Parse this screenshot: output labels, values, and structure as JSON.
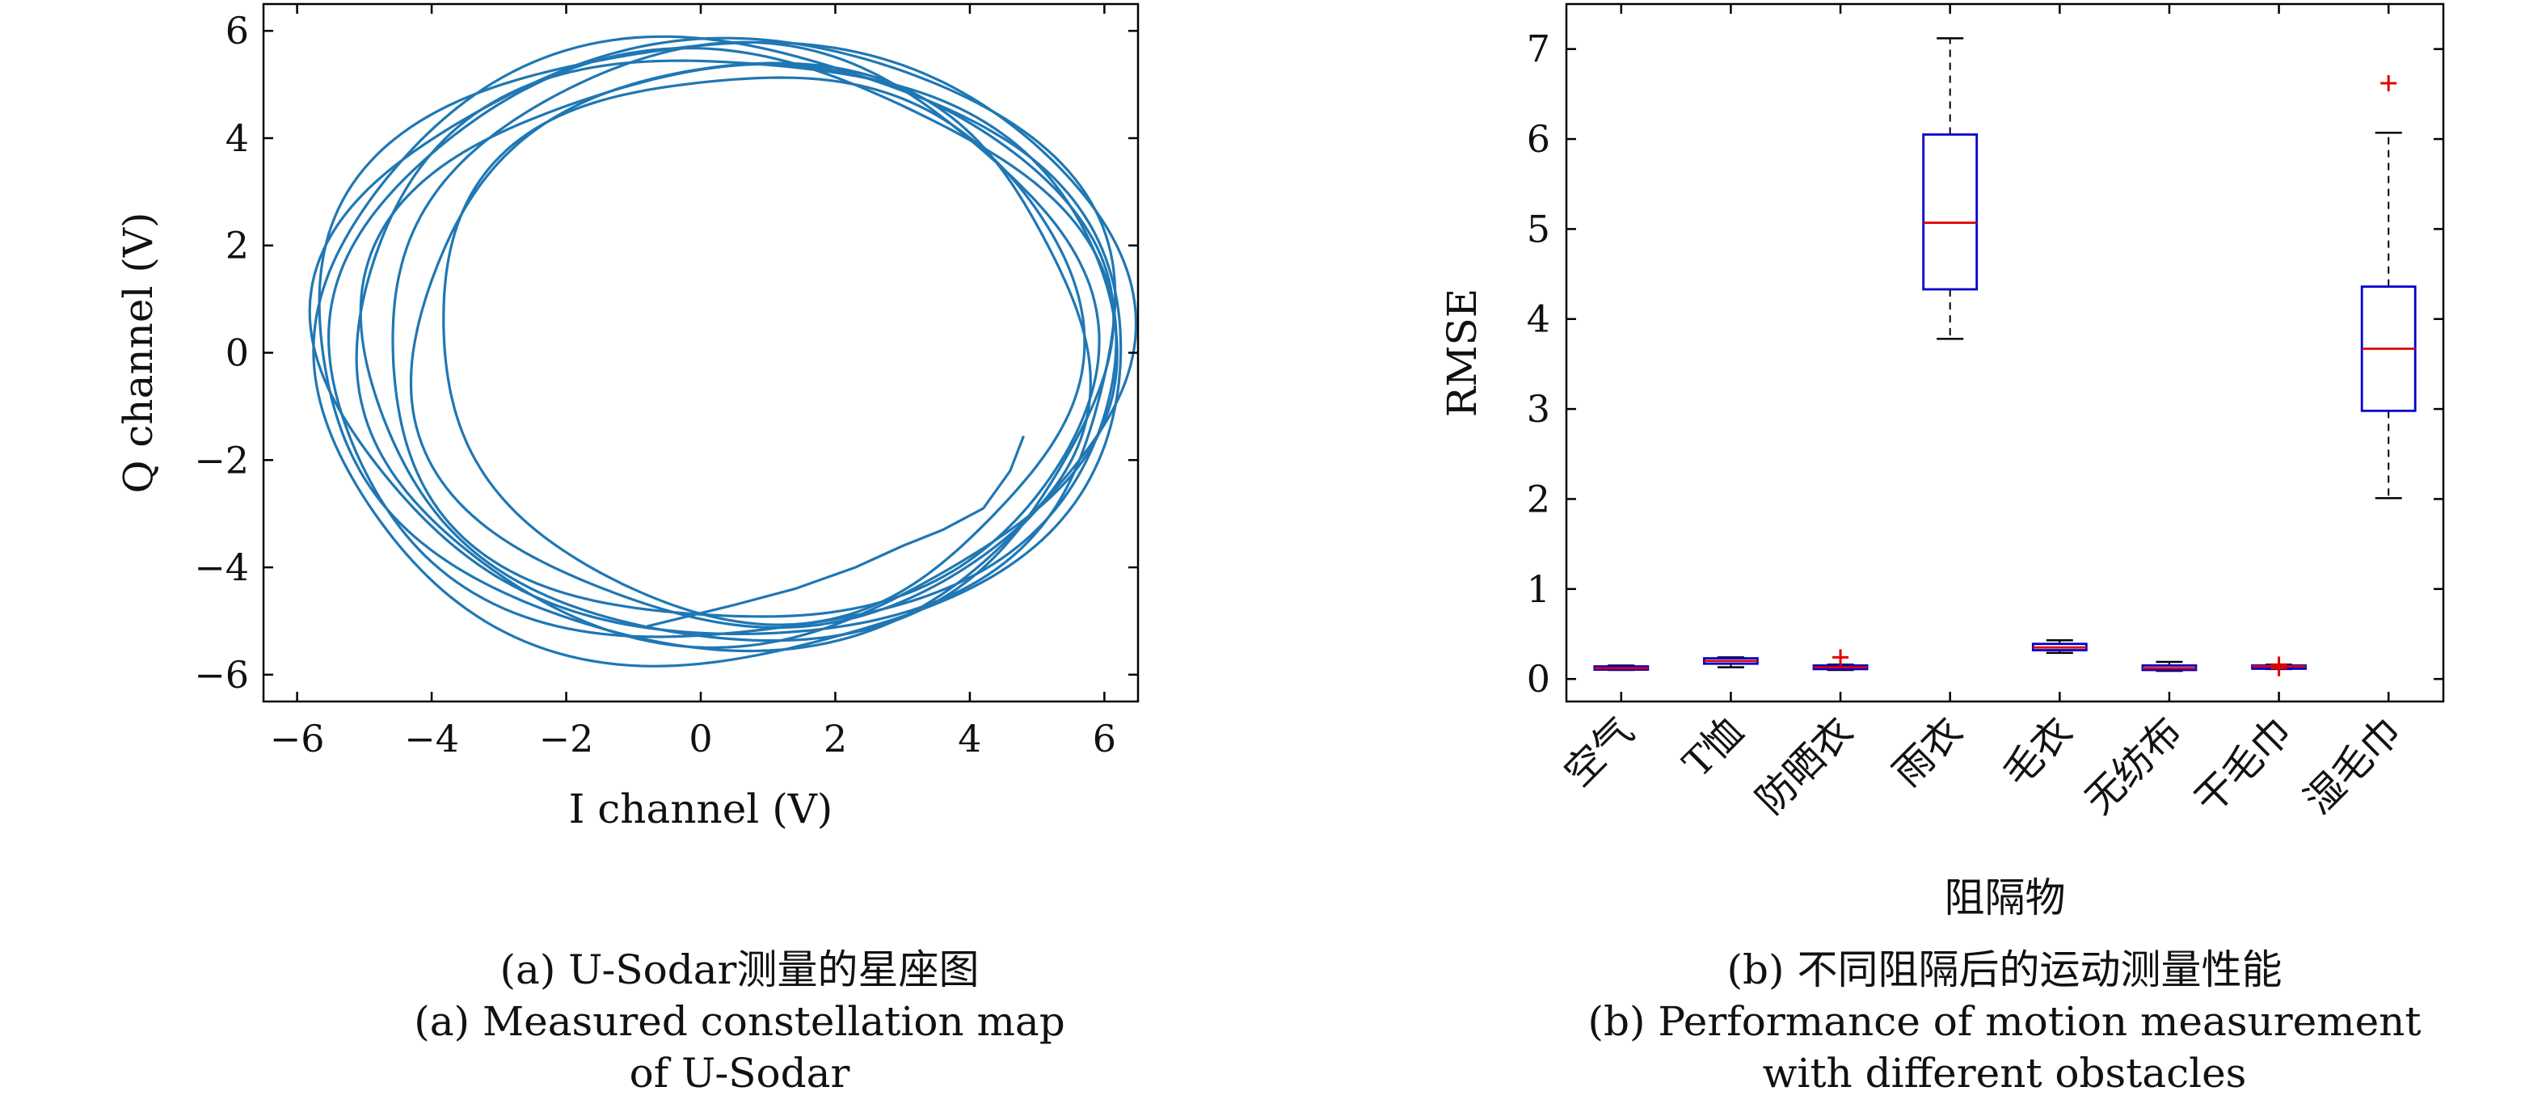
{
  "chart_data": [
    {
      "type": "line",
      "panel": "a",
      "xlabel": "I channel (V)",
      "ylabel": "Q channel (V)",
      "xlim": [
        -6.5,
        6.5
      ],
      "ylim": [
        -6.5,
        6.5
      ],
      "xticks": [
        "−6",
        "−4",
        "−2",
        "0",
        "2",
        "4",
        "6"
      ],
      "yticks": [
        "−6",
        "−4",
        "−2",
        "0",
        "2",
        "4",
        "6"
      ],
      "color": "#1f77b4",
      "grid": false,
      "loops": [
        {
          "cx": 0.3,
          "cy": 0.25,
          "rx": 6.05,
          "ry": 5.65,
          "tilt": 0.0
        },
        {
          "cx": 0.45,
          "cy": 0.15,
          "rx": 5.65,
          "ry": 5.45,
          "tilt": 0.05
        },
        {
          "cx": 0.25,
          "cy": 0.05,
          "rx": 5.85,
          "ry": 5.45,
          "tilt": -0.04
        },
        {
          "cx": 0.55,
          "cy": 0.25,
          "rx": 5.25,
          "ry": 5.35,
          "tilt": 0.1
        },
        {
          "cx": 0.75,
          "cy": 0.1,
          "rx": 5.0,
          "ry": 5.25,
          "tilt": 0.14
        },
        {
          "cx": 0.35,
          "cy": 0.3,
          "rx": 5.95,
          "ry": 5.55,
          "tilt": -0.08
        },
        {
          "cx": 0.55,
          "cy": 0.05,
          "rx": 5.55,
          "ry": 5.35,
          "tilt": 0.07
        },
        {
          "cx": 0.85,
          "cy": 0.2,
          "rx": 4.75,
          "ry": 5.1,
          "tilt": 0.18
        },
        {
          "cx": 0.2,
          "cy": 0.0,
          "rx": 6.0,
          "ry": 5.8,
          "tilt": 0.02
        }
      ],
      "tail": [
        [
          4.8,
          -1.55
        ],
        [
          4.6,
          -2.2
        ],
        [
          4.2,
          -2.9
        ],
        [
          3.6,
          -3.3
        ],
        [
          3.0,
          -3.6
        ],
        [
          2.3,
          -4.0
        ],
        [
          1.4,
          -4.4
        ],
        [
          0.5,
          -4.7
        ],
        [
          -0.8,
          -5.1
        ]
      ]
    },
    {
      "type": "box",
      "panel": "b",
      "xlabel": "阻隔物",
      "ylabel": "RMSE",
      "ylim": [
        -0.25,
        7.5
      ],
      "yticks": [
        "0",
        "1",
        "2",
        "3",
        "4",
        "5",
        "6",
        "7"
      ],
      "box_color": "#0000cc",
      "median_color": "#e00000",
      "outlier_color": "#e00000",
      "grid": false,
      "categories": [
        "空气",
        "T恤",
        "防晒衣",
        "雨衣",
        "毛衣",
        "无纺布",
        "干毛巾",
        "湿毛巾"
      ],
      "boxes": [
        {
          "whisker_low": 0.1,
          "q1": 0.11,
          "median": 0.12,
          "q3": 0.14,
          "whisker_high": 0.15,
          "outliers": []
        },
        {
          "whisker_low": 0.13,
          "q1": 0.17,
          "median": 0.2,
          "q3": 0.23,
          "whisker_high": 0.24,
          "outliers": []
        },
        {
          "whisker_low": 0.1,
          "q1": 0.11,
          "median": 0.13,
          "q3": 0.15,
          "whisker_high": 0.16,
          "outliers": [
            0.24
          ]
        },
        {
          "whisker_low": 3.78,
          "q1": 4.33,
          "median": 5.07,
          "q3": 6.05,
          "whisker_high": 7.12,
          "outliers": []
        },
        {
          "whisker_low": 0.29,
          "q1": 0.32,
          "median": 0.35,
          "q3": 0.39,
          "whisker_high": 0.43,
          "outliers": []
        },
        {
          "whisker_low": 0.09,
          "q1": 0.1,
          "median": 0.12,
          "q3": 0.15,
          "whisker_high": 0.19,
          "outliers": []
        },
        {
          "whisker_low": 0.11,
          "q1": 0.12,
          "median": 0.14,
          "q3": 0.15,
          "whisker_high": 0.16,
          "outliers": [
            0.16,
            0.12
          ]
        },
        {
          "whisker_low": 2.01,
          "q1": 2.98,
          "median": 3.67,
          "q3": 4.36,
          "whisker_high": 6.07,
          "outliers": [
            6.62
          ]
        }
      ]
    }
  ],
  "captions": {
    "a_cn": "(a) U-Sodar测量的星座图",
    "a_en_1": "(a) Measured constellation map",
    "a_en_2": "of U-Sodar",
    "b_cn": "(b) 不同阻隔后的运动测量性能",
    "b_en_1": "(b) Performance of motion measurement",
    "b_en_2": "with different obstacles"
  }
}
